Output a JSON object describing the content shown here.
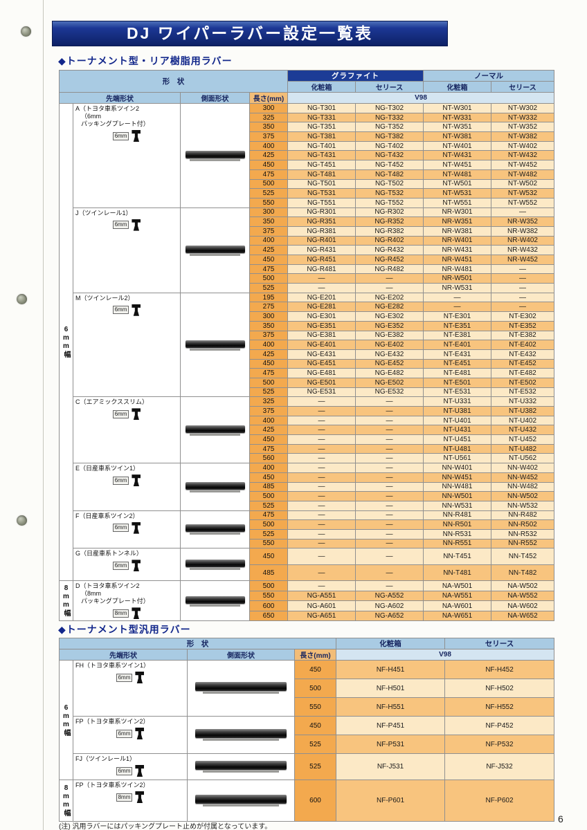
{
  "page": {
    "title": "DJ ワイパーラバー設定一覧表",
    "page_number": "6",
    "footnote": "(注) 汎用ラバーにはパッキングプレート止めが付属となっています。"
  },
  "table1": {
    "heading": "◆トーナメント型・リア樹脂用ラバー",
    "headers": {
      "shape": "形　状",
      "tip": "先端形状",
      "side": "側面形状",
      "length": "長さ(mm)",
      "graphite": "グラファイト",
      "normal": "ノーマル",
      "box": "化粧箱",
      "series": "セリース",
      "box2": "化粧箱",
      "series2": "セリース",
      "v98": "V98"
    },
    "sections": [
      {
        "id": "A",
        "width": "6mm幅",
        "label": "A（トヨタ車系ツイン2",
        "sub": [
          "（6mm",
          "パッキングプレート付）"
        ],
        "size": "6mm",
        "start_dark": false,
        "rows": [
          {
            "len": "300",
            "v": [
              "NG-T301",
              "NG-T302",
              "NT-W301",
              "NT-W302"
            ]
          },
          {
            "len": "325",
            "v": [
              "NG-T331",
              "NG-T332",
              "NT-W331",
              "NT-W332"
            ]
          },
          {
            "len": "350",
            "v": [
              "NG-T351",
              "NG-T352",
              "NT-W351",
              "NT-W352"
            ]
          },
          {
            "len": "375",
            "v": [
              "NG-T381",
              "NG-T382",
              "NT-W381",
              "NT-W382"
            ]
          },
          {
            "len": "400",
            "v": [
              "NG-T401",
              "NG-T402",
              "NT-W401",
              "NT-W402"
            ]
          },
          {
            "len": "425",
            "v": [
              "NG-T431",
              "NG-T432",
              "NT-W431",
              "NT-W432"
            ]
          },
          {
            "len": "450",
            "v": [
              "NG-T451",
              "NG-T452",
              "NT-W451",
              "NT-W452"
            ]
          },
          {
            "len": "475",
            "v": [
              "NG-T481",
              "NG-T482",
              "NT-W481",
              "NT-W482"
            ]
          },
          {
            "len": "500",
            "v": [
              "NG-T501",
              "NG-T502",
              "NT-W501",
              "NT-W502"
            ]
          },
          {
            "len": "525",
            "v": [
              "NG-T531",
              "NG-T532",
              "NT-W531",
              "NT-W532"
            ]
          },
          {
            "len": "550",
            "v": [
              "NG-T551",
              "NG-T552",
              "NT-W551",
              "NT-W552"
            ]
          }
        ]
      },
      {
        "id": "J",
        "width": "6mm幅",
        "label": "J（ツインレール1）",
        "sub": [],
        "size": "6mm",
        "start_dark": false,
        "rows": [
          {
            "len": "300",
            "v": [
              "NG-R301",
              "NG-R302",
              "NR-W301",
              "—"
            ]
          },
          {
            "len": "350",
            "v": [
              "NG-R351",
              "NG-R352",
              "NR-W351",
              "NR-W352"
            ]
          },
          {
            "len": "375",
            "v": [
              "NG-R381",
              "NG-R382",
              "NR-W381",
              "NR-W382"
            ]
          },
          {
            "len": "400",
            "v": [
              "NG-R401",
              "NG-R402",
              "NR-W401",
              "NR-W402"
            ]
          },
          {
            "len": "425",
            "v": [
              "NG-R431",
              "NG-R432",
              "NR-W431",
              "NR-W432"
            ]
          },
          {
            "len": "450",
            "v": [
              "NG-R451",
              "NG-R452",
              "NR-W451",
              "NR-W452"
            ]
          },
          {
            "len": "475",
            "v": [
              "NG-R481",
              "NG-R482",
              "NR-W481",
              "—"
            ]
          },
          {
            "len": "500",
            "v": [
              "—",
              "—",
              "NR-W501",
              "—"
            ]
          },
          {
            "len": "525",
            "v": [
              "—",
              "—",
              "NR-W531",
              "—"
            ]
          }
        ]
      },
      {
        "id": "M",
        "width": "6mm幅",
        "label": "M（ツインレール2）",
        "sub": [],
        "size": "6mm",
        "start_dark": false,
        "rows": [
          {
            "len": "195",
            "v": [
              "NG-E201",
              "NG-E202",
              "—",
              "—"
            ]
          },
          {
            "len": "275",
            "v": [
              "NG-E281",
              "NG-E282",
              "—",
              "—"
            ]
          },
          {
            "len": "300",
            "v": [
              "NG-E301",
              "NG-E302",
              "NT-E301",
              "NT-E302"
            ]
          },
          {
            "len": "350",
            "v": [
              "NG-E351",
              "NG-E352",
              "NT-E351",
              "NT-E352"
            ]
          },
          {
            "len": "375",
            "v": [
              "NG-E381",
              "NG-E382",
              "NT-E381",
              "NT-E382"
            ]
          },
          {
            "len": "400",
            "v": [
              "NG-E401",
              "NG-E402",
              "NT-E401",
              "NT-E402"
            ]
          },
          {
            "len": "425",
            "v": [
              "NG-E431",
              "NG-E432",
              "NT-E431",
              "NT-E432"
            ]
          },
          {
            "len": "450",
            "v": [
              "NG-E451",
              "NG-E452",
              "NT-E451",
              "NT-E452"
            ]
          },
          {
            "len": "475",
            "v": [
              "NG-E481",
              "NG-E482",
              "NT-E481",
              "NT-E482"
            ]
          },
          {
            "len": "500",
            "v": [
              "NG-E501",
              "NG-E502",
              "NT-E501",
              "NT-E502"
            ]
          },
          {
            "len": "525",
            "v": [
              "NG-E531",
              "NG-E532",
              "NT-E531",
              "NT-E532"
            ]
          }
        ]
      },
      {
        "id": "C",
        "width": "6mm幅",
        "label": "C（エアミックススリム）",
        "sub": [],
        "size": "6mm",
        "start_dark": false,
        "rows": [
          {
            "len": "325",
            "v": [
              "—",
              "—",
              "NT-U331",
              "NT-U332"
            ]
          },
          {
            "len": "375",
            "v": [
              "—",
              "—",
              "NT-U381",
              "NT-U382"
            ]
          },
          {
            "len": "400",
            "v": [
              "—",
              "—",
              "NT-U401",
              "NT-U402"
            ]
          },
          {
            "len": "425",
            "v": [
              "—",
              "—",
              "NT-U431",
              "NT-U432"
            ]
          },
          {
            "len": "450",
            "v": [
              "—",
              "—",
              "NT-U451",
              "NT-U452"
            ]
          },
          {
            "len": "475",
            "v": [
              "—",
              "—",
              "NT-U481",
              "NT-U482"
            ]
          },
          {
            "len": "560",
            "v": [
              "—",
              "—",
              "NT-U561",
              "NT-U562"
            ]
          }
        ]
      },
      {
        "id": "E",
        "width": "6mm幅",
        "label": "E（日産車系ツイン1）",
        "sub": [],
        "size": "6mm",
        "start_dark": false,
        "rows": [
          {
            "len": "400",
            "v": [
              "—",
              "—",
              "NN-W401",
              "NN-W402"
            ]
          },
          {
            "len": "450",
            "v": [
              "—",
              "—",
              "NN-W451",
              "NN-W452"
            ]
          },
          {
            "len": "485",
            "v": [
              "—",
              "—",
              "NN-W481",
              "NN-W482"
            ]
          },
          {
            "len": "500",
            "v": [
              "—",
              "—",
              "NN-W501",
              "NN-W502"
            ]
          },
          {
            "len": "525",
            "v": [
              "—",
              "—",
              "NN-W531",
              "NN-W532"
            ]
          }
        ]
      },
      {
        "id": "F",
        "width": "6mm幅",
        "label": "F（日産車系ツイン2）",
        "sub": [],
        "size": "6mm",
        "start_dark": false,
        "rows": [
          {
            "len": "475",
            "v": [
              "—",
              "—",
              "NN-R481",
              "NN-R482"
            ]
          },
          {
            "len": "500",
            "v": [
              "—",
              "—",
              "NN-R501",
              "NN-R502"
            ]
          },
          {
            "len": "525",
            "v": [
              "—",
              "—",
              "NN-R531",
              "NN-R532"
            ]
          },
          {
            "len": "550",
            "v": [
              "—",
              "—",
              "NN-R551",
              "NN-R552"
            ]
          }
        ]
      },
      {
        "id": "G",
        "width": "6mm幅",
        "label": "G（日産車系トンネル）",
        "sub": [],
        "size": "6mm",
        "start_dark": false,
        "rows": [
          {
            "len": "450",
            "v": [
              "—",
              "—",
              "NN-T451",
              "NN-T452"
            ]
          },
          {
            "len": "485",
            "v": [
              "—",
              "—",
              "NN-T481",
              "NN-T482"
            ]
          }
        ]
      },
      {
        "id": "D",
        "width": "8mm幅",
        "label": "D（トヨタ車系ツイン2",
        "sub": [
          "（8mm",
          "パッキングプレート付）"
        ],
        "size": "8mm",
        "start_dark": false,
        "rows": [
          {
            "len": "500",
            "v": [
              "—",
              "—",
              "NA-W501",
              "NA-W502"
            ]
          },
          {
            "len": "550",
            "v": [
              "NG-A551",
              "NG-A552",
              "NA-W551",
              "NA-W552"
            ]
          },
          {
            "len": "600",
            "v": [
              "NG-A601",
              "NG-A602",
              "NA-W601",
              "NA-W602"
            ]
          },
          {
            "len": "650",
            "v": [
              "NG-A651",
              "NG-A652",
              "NA-W651",
              "NA-W652"
            ]
          }
        ]
      }
    ]
  },
  "table2": {
    "heading": "◆トーナメント型汎用ラバー",
    "headers": {
      "shape": "形　状",
      "tip": "先端形状",
      "side": "側面形状",
      "length": "長さ(mm)",
      "box": "化粧箱",
      "series": "セリース",
      "v98": "V98"
    },
    "sections": [
      {
        "id": "FH",
        "width": "6mm幅",
        "label": "FH（トヨタ車系ツイン1）",
        "sub": [],
        "size": "6mm",
        "start_dark": true,
        "rows": [
          {
            "len": "450",
            "v": [
              "NF-H451",
              "NF-H452"
            ]
          },
          {
            "len": "500",
            "v": [
              "NF-H501",
              "NF-H502"
            ]
          },
          {
            "len": "550",
            "v": [
              "NF-H551",
              "NF-H552"
            ]
          }
        ]
      },
      {
        "id": "FP6",
        "width": "6mm幅",
        "label": "FP（トヨタ車系ツイン2）",
        "sub": [],
        "size": "6mm",
        "start_dark": false,
        "rows": [
          {
            "len": "450",
            "v": [
              "NF-P451",
              "NF-P452"
            ]
          },
          {
            "len": "525",
            "v": [
              "NF-P531",
              "NF-P532"
            ]
          }
        ]
      },
      {
        "id": "FJ",
        "width": "6mm幅",
        "label": "FJ（ツインレール1）",
        "sub": [],
        "size": "6mm",
        "start_dark": false,
        "rows": [
          {
            "len": "525",
            "v": [
              "NF-J531",
              "NF-J532"
            ]
          }
        ]
      },
      {
        "id": "FP8",
        "width": "8mm幅",
        "label": "FP（トヨタ車系ツイン2）",
        "sub": [],
        "size": "8mm",
        "start_dark": true,
        "rows": [
          {
            "len": "600",
            "v": [
              "NF-P601",
              "NF-P602"
            ]
          }
        ]
      }
    ]
  }
}
